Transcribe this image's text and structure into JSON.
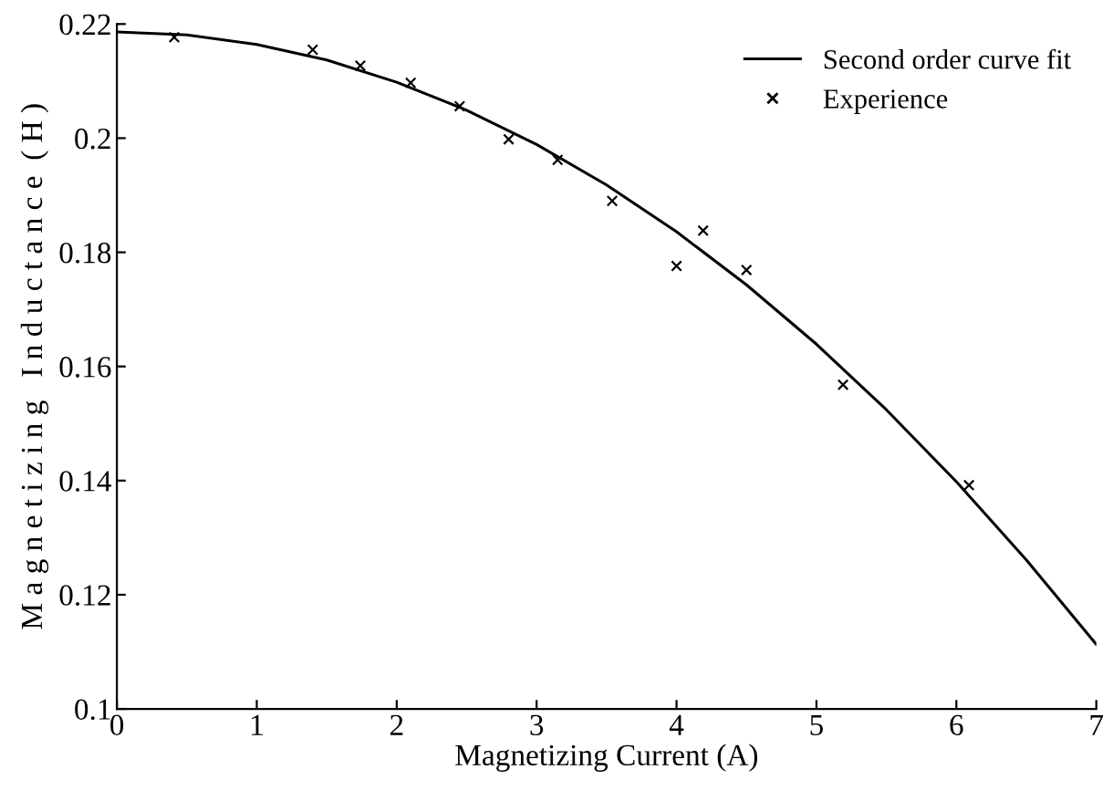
{
  "chart_data": {
    "type": "line",
    "xlabel": "Magnetizing Current (A)",
    "ylabel": "M a g n e t i z i n g   I n d u c t a n c e  ( H )",
    "xlim": [
      0,
      7
    ],
    "ylim": [
      0.1,
      0.22
    ],
    "xticks": [
      0,
      1,
      2,
      3,
      4,
      5,
      6,
      7
    ],
    "yticks": [
      0.1,
      0.12,
      0.14,
      0.16,
      0.18,
      0.2,
      0.22
    ],
    "grid": false,
    "legend": "top right",
    "series": [
      {
        "name": "Second order curve fit",
        "color": "#000000",
        "marker": "none",
        "line_style": "solid",
        "x": [
          0,
          0.5,
          1,
          1.5,
          2,
          2.5,
          3,
          3.5,
          4,
          4.5,
          5,
          5.5,
          6,
          6.5,
          7
        ],
        "values": [
          0.2186,
          0.2181,
          0.2164,
          0.2137,
          0.2098,
          0.2049,
          0.1989,
          0.1918,
          0.1836,
          0.1743,
          0.1639,
          0.1524,
          0.1398,
          0.1261,
          0.1113
        ]
      },
      {
        "name": "Experience",
        "type": "scatter",
        "color": "#000000",
        "marker": "cross",
        "x": [
          0.41,
          1.4,
          1.74,
          2.1,
          2.45,
          2.8,
          3.15,
          3.54,
          4.0,
          4.19,
          4.5,
          5.19,
          6.09
        ],
        "values": [
          0.2177,
          0.2155,
          0.2127,
          0.2097,
          0.2056,
          0.1998,
          0.1962,
          0.189,
          0.1776,
          0.1838,
          0.1769,
          0.1568,
          0.1392
        ]
      }
    ]
  }
}
